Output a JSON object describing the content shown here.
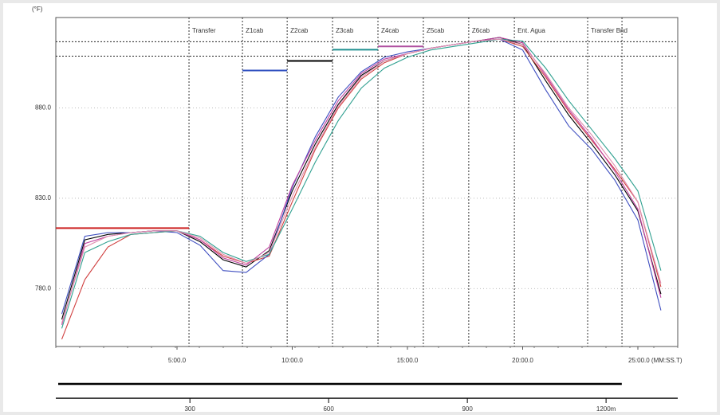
{
  "chart_data": {
    "type": "line",
    "y_label": "(°F)",
    "xlim": [
      -0.26,
      26.73
    ],
    "xticks": [
      {
        "value": 5,
        "label": "5:00.0"
      },
      {
        "value": 10,
        "label": "10:00.0"
      },
      {
        "value": 15,
        "label": "15:00.0"
      },
      {
        "value": 20,
        "label": "20:00.0"
      },
      {
        "value": 25,
        "label": "25:00.0 (MM:SS.T)"
      }
    ],
    "ylim": [
      748,
      930
    ],
    "yticks": [
      {
        "value": 780,
        "label": "780.0"
      },
      {
        "value": 830,
        "label": "830.0"
      },
      {
        "value": 880,
        "label": "880.0"
      }
    ],
    "x": [
      0,
      1,
      2,
      3,
      4,
      5,
      6,
      7,
      8,
      9,
      10,
      11,
      12,
      13,
      14,
      15,
      16,
      17,
      18,
      19,
      20,
      21,
      22,
      23,
      24,
      25,
      26
    ],
    "series": [
      {
        "color": "#000000",
        "values": [
          763,
          807,
          810,
          811,
          812,
          812,
          806,
          796,
          792,
          801,
          834,
          860,
          882,
          898,
          906,
          910,
          913,
          915,
          917,
          919,
          915,
          895,
          876,
          860,
          843,
          823,
          777
        ]
      },
      {
        "color": "#d04040",
        "values": [
          752,
          785,
          803,
          810,
          811,
          812,
          807,
          798,
          794,
          798,
          828,
          857,
          880,
          896,
          905,
          910,
          913,
          915,
          917,
          918,
          914,
          897,
          878,
          862,
          846,
          828,
          781
        ]
      },
      {
        "color": "#3f4fc0",
        "values": [
          766,
          809,
          811,
          811,
          812,
          811,
          804,
          790,
          789,
          799,
          836,
          864,
          886,
          900,
          908,
          911,
          913,
          915,
          917,
          918,
          912,
          890,
          870,
          857,
          840,
          818,
          768
        ]
      },
      {
        "color": "#c040a0",
        "values": [
          760,
          805,
          809,
          811,
          812,
          812,
          807,
          797,
          793,
          803,
          837,
          862,
          884,
          899,
          907,
          910,
          913,
          915,
          917,
          919,
          916,
          898,
          879,
          863,
          845,
          824,
          775
        ]
      },
      {
        "color": "#30a090",
        "values": [
          758,
          800,
          806,
          810,
          811,
          812,
          809,
          800,
          795,
          799,
          824,
          850,
          873,
          891,
          902,
          908,
          912,
          914,
          916,
          918,
          917,
          902,
          884,
          868,
          852,
          834,
          790
        ]
      },
      {
        "color": "#e090b0",
        "values": [
          761,
          803,
          809,
          811,
          812,
          812,
          808,
          799,
          794,
          800,
          831,
          858,
          881,
          897,
          906,
          910,
          913,
          915,
          917,
          918,
          915,
          899,
          880,
          865,
          848,
          828,
          783
        ]
      }
    ],
    "zone_lines": [
      5.52,
      7.84,
      9.78,
      11.75,
      13.72,
      15.69,
      17.66,
      19.64,
      22.82,
      24.31
    ],
    "zone_labels": [
      "Transfer",
      "Z1cab",
      "Z2cab",
      "Z3cab",
      "Z4cab",
      "Z5cab",
      "Z6cab",
      "Ent. Agua",
      "Transfer Bnd"
    ],
    "setpoints": [
      {
        "start": -0.26,
        "end": 5.52,
        "value": 813.5,
        "color": "#cc2020"
      },
      {
        "start": 7.84,
        "end": 9.78,
        "value": 900.7,
        "color": "#3050c0"
      },
      {
        "start": 9.78,
        "end": 11.75,
        "value": 906,
        "color": "#000000"
      },
      {
        "start": 11.75,
        "end": 13.72,
        "value": 912.2,
        "color": "#209090"
      },
      {
        "start": 13.72,
        "end": 15.69,
        "value": 914,
        "color": "#b050a0"
      }
    ],
    "limit_lines": [
      916.6,
      908.6
    ],
    "x2lim": [
      10,
      1355
    ],
    "x2ticks": [
      300,
      600,
      900,
      {
        "value": 1200,
        "label": "1200m"
      }
    ],
    "distance_line": 1234
  }
}
